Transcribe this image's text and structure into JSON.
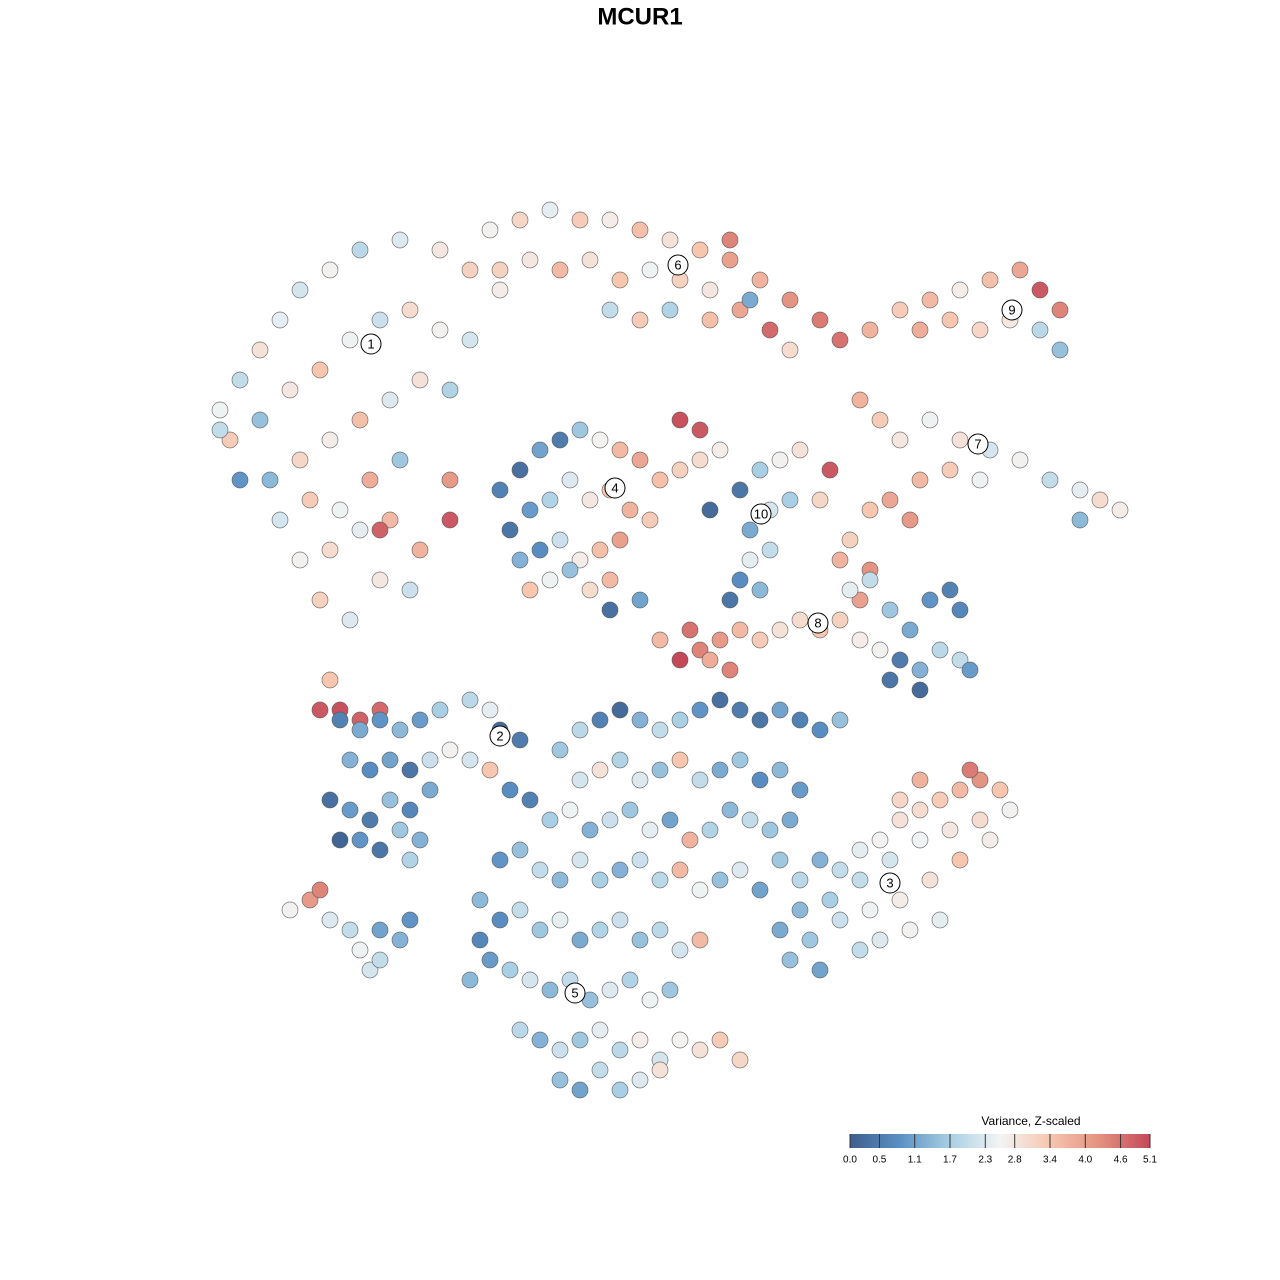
{
  "chart_data": {
    "type": "scatter",
    "title": "MCUR1",
    "xlim": [
      0,
      128
    ],
    "ylim": [
      0,
      128
    ],
    "x": [
      22,
      24,
      26,
      28,
      30,
      33,
      36,
      40,
      44,
      47,
      50,
      23,
      26,
      29,
      32,
      35,
      38,
      41,
      44,
      47,
      27,
      30,
      33,
      36,
      39,
      42,
      45,
      28,
      31,
      34,
      37,
      40,
      30,
      33,
      36,
      39,
      32,
      35,
      38,
      41,
      32,
      34,
      36,
      38,
      33,
      24,
      22,
      45,
      42,
      38,
      45,
      49,
      52,
      55,
      58,
      61,
      64,
      67,
      70,
      73,
      76,
      79,
      82,
      84,
      50,
      53,
      56,
      59,
      62,
      65,
      68,
      71,
      74,
      77,
      79,
      61,
      64,
      67,
      71,
      73,
      75,
      87,
      90,
      93,
      96,
      99,
      102,
      104,
      106,
      92,
      95,
      98,
      101,
      104,
      106,
      86,
      88,
      90,
      93,
      96,
      99,
      102,
      105,
      108,
      110,
      112,
      98,
      95,
      92,
      89,
      87,
      91,
      85,
      84,
      87,
      86,
      108,
      50,
      52,
      54,
      56,
      58,
      60,
      62,
      64,
      66,
      68,
      70,
      72,
      51,
      53,
      55,
      57,
      59,
      61,
      63,
      65,
      52,
      54,
      56,
      58,
      60,
      62,
      53,
      55,
      57,
      59,
      61,
      68,
      70,
      74,
      76,
      78,
      80,
      75,
      77,
      79,
      75,
      77,
      74,
      76,
      71,
      83,
      82,
      68,
      70,
      72,
      74,
      76,
      78,
      80,
      82,
      69,
      71,
      73,
      85,
      87,
      89,
      91,
      93,
      95,
      96,
      90,
      92,
      94,
      96,
      97,
      89,
      92,
      88,
      84,
      86,
      61,
      64,
      73,
      66,
      34,
      36,
      38,
      40,
      42,
      44,
      47,
      49,
      50,
      52,
      35,
      37,
      39,
      41,
      43,
      45,
      47,
      49,
      33,
      35,
      37,
      39,
      41,
      43,
      34,
      36,
      38,
      40,
      42,
      41,
      51,
      53,
      29,
      31,
      32,
      33,
      35,
      36,
      37,
      38,
      40,
      41,
      38,
      56,
      58,
      60,
      62,
      64,
      66,
      68,
      70,
      72,
      74,
      76,
      78,
      80,
      82,
      84,
      58,
      60,
      62,
      64,
      66,
      68,
      70,
      72,
      74,
      76,
      78,
      80,
      55,
      57,
      59,
      61,
      63,
      65,
      67,
      69,
      71,
      73,
      75,
      77,
      79,
      50,
      52,
      54,
      56,
      58,
      60,
      62,
      64,
      66,
      68,
      70,
      72,
      74,
      76,
      48,
      50,
      52,
      54,
      56,
      58,
      60,
      62,
      64,
      66,
      68,
      70,
      49,
      51,
      53,
      55,
      57,
      59,
      61,
      63,
      65,
      67,
      52,
      54,
      56,
      58,
      60,
      62,
      64,
      66,
      68,
      70,
      72,
      74,
      56,
      58,
      60,
      62,
      64,
      66,
      48,
      47,
      78,
      80,
      82,
      84,
      86,
      88,
      90,
      92,
      94,
      96,
      98,
      100,
      101,
      98,
      95,
      92,
      89,
      86,
      83,
      80,
      78,
      81,
      84,
      87,
      90,
      93,
      96,
      99,
      88,
      91,
      94,
      86,
      79,
      82,
      97,
      92,
      90
    ],
    "y": [
      87,
      90,
      93,
      96,
      99,
      101,
      103,
      104,
      103,
      101,
      99,
      84,
      86,
      89,
      91,
      94,
      96,
      97,
      95,
      94,
      80,
      82,
      84,
      86,
      88,
      90,
      89,
      76,
      78,
      77,
      80,
      82,
      72,
      73,
      75,
      76,
      68,
      66,
      70,
      69,
      57,
      57,
      56,
      57,
      60,
      80,
      85,
      80,
      73,
      75,
      76,
      105,
      106,
      107,
      106,
      106,
      105,
      104,
      103,
      102,
      100,
      98,
      96,
      94,
      101,
      102,
      101,
      102,
      100,
      101,
      100,
      99,
      97,
      95,
      93,
      97,
      96,
      97,
      96,
      104,
      98,
      95,
      97,
      98,
      99,
      100,
      101,
      99,
      97,
      95,
      96,
      95,
      96,
      95,
      93,
      88,
      86,
      84,
      86,
      84,
      83,
      82,
      80,
      79,
      78,
      77,
      80,
      81,
      80,
      78,
      77,
      76,
      74,
      72,
      71,
      68,
      76,
      79,
      81,
      83,
      84,
      85,
      84,
      83,
      82,
      80,
      81,
      82,
      83,
      75,
      77,
      78,
      80,
      78,
      79,
      77,
      76,
      72,
      73,
      74,
      72,
      73,
      74,
      69,
      70,
      71,
      69,
      70,
      86,
      85,
      79,
      81,
      82,
      83,
      75,
      77,
      78,
      72,
      73,
      70,
      69,
      77,
      81,
      78,
      62,
      63,
      64,
      65,
      64,
      65,
      66,
      65,
      65,
      62,
      61,
      69,
      70,
      67,
      65,
      68,
      69,
      67,
      62,
      61,
      63,
      62,
      61,
      60,
      59,
      63,
      66,
      64,
      67,
      68,
      68,
      64,
      56,
      55,
      56,
      55,
      56,
      57,
      58,
      57,
      55,
      54,
      52,
      51,
      52,
      51,
      52,
      53,
      52,
      51,
      48,
      47,
      46,
      48,
      47,
      49,
      44,
      44,
      43,
      45,
      44,
      42,
      49,
      48,
      37,
      38,
      39,
      36,
      35,
      33,
      31,
      35,
      34,
      36,
      32,
      53,
      55,
      56,
      57,
      56,
      55,
      56,
      57,
      58,
      57,
      56,
      57,
      56,
      55,
      56,
      50,
      51,
      52,
      50,
      51,
      52,
      50,
      51,
      52,
      50,
      51,
      49,
      46,
      47,
      45,
      46,
      47,
      45,
      46,
      44,
      45,
      47,
      46,
      45,
      46,
      42,
      43,
      41,
      40,
      42,
      40,
      41,
      42,
      40,
      41,
      39,
      40,
      41,
      39,
      38,
      36,
      37,
      35,
      36,
      34,
      35,
      36,
      34,
      35,
      33,
      34,
      32,
      31,
      30,
      29,
      30,
      28,
      29,
      30,
      28,
      29,
      25,
      24,
      23,
      24,
      25,
      23,
      24,
      22,
      24,
      23,
      24,
      22,
      20,
      19,
      21,
      19,
      20,
      21,
      34,
      30,
      42,
      40,
      42,
      41,
      43,
      44,
      46,
      47,
      48,
      49,
      50,
      49,
      47,
      46,
      45,
      44,
      42,
      40,
      38,
      37,
      35,
      34,
      36,
      37,
      38,
      40,
      42,
      44,
      34,
      35,
      36,
      33,
      32,
      31,
      51,
      50,
      48
    ],
    "values": [
      2.5,
      2.0,
      2.9,
      2.4,
      2.2,
      2.6,
      1.9,
      2.3,
      2.8,
      3.2,
      2.7,
      3.3,
      1.5,
      2.8,
      3.4,
      2.5,
      2.1,
      3.0,
      2.6,
      2.2,
      1.4,
      3.1,
      2.7,
      3.5,
      2.3,
      2.9,
      1.8,
      2.2,
      3.3,
      2.5,
      3.8,
      1.6,
      2.6,
      3.0,
      2.4,
      3.6,
      3.2,
      2.3,
      2.8,
      2.1,
      4.9,
      5.0,
      4.8,
      4.7,
      3.4,
      0.9,
      2.0,
      4.1,
      3.7,
      4.8,
      4.9,
      2.6,
      3.1,
      2.4,
      3.3,
      2.7,
      3.5,
      2.9,
      3.4,
      4.0,
      3.7,
      4.2,
      4.5,
      4.6,
      3.2,
      2.8,
      3.6,
      2.9,
      3.4,
      2.5,
      3.2,
      2.8,
      3.9,
      4.7,
      3.0,
      2.0,
      3.3,
      1.8,
      3.5,
      4.4,
      1.2,
      3.7,
      3.3,
      3.6,
      2.7,
      3.5,
      3.9,
      4.9,
      4.4,
      3.8,
      3.4,
      3.1,
      2.8,
      1.9,
      1.5,
      3.7,
      3.3,
      2.8,
      2.5,
      2.9,
      2.2,
      2.6,
      2.0,
      2.4,
      3.0,
      2.7,
      2.5,
      3.3,
      3.6,
      3.9,
      3.4,
      4.1,
      3.2,
      3.7,
      4.2,
      4.0,
      1.4,
      0.6,
      0.3,
      1.1,
      0.5,
      1.6,
      2.6,
      3.6,
      3.9,
      3.5,
      3.2,
      3.0,
      2.7,
      0.4,
      1.0,
      1.8,
      2.3,
      2.8,
      3.4,
      3.7,
      3.3,
      1.3,
      0.8,
      2.1,
      2.7,
      3.5,
      4.0,
      3.4,
      2.5,
      1.5,
      3.0,
      3.6,
      5.0,
      4.9,
      0.4,
      1.7,
      2.6,
      2.9,
      1.2,
      2.2,
      1.7,
      2.4,
      2.0,
      0.8,
      1.4,
      0.2,
      4.9,
      3.1,
      5.1,
      4.4,
      4.1,
      3.6,
      3.3,
      2.9,
      3.0,
      3.4,
      4.6,
      3.8,
      4.4,
      2.4,
      2.0,
      1.6,
      1.2,
      0.9,
      0.6,
      0.7,
      0.5,
      1.3,
      1.9,
      2.0,
      1.0,
      0.4,
      0.2,
      2.6,
      3.2,
      2.7,
      0.3,
      1.1,
      0.4,
      3.6,
      0.6,
      1.2,
      0.9,
      1.4,
      1.0,
      1.7,
      1.9,
      2.4,
      0.2,
      0.5,
      1.3,
      0.8,
      1.1,
      0.4,
      2.1,
      2.6,
      2.2,
      3.4,
      0.3,
      1.0,
      0.5,
      1.5,
      0.7,
      1.2,
      0.1,
      0.9,
      0.4,
      1.6,
      1.3,
      1.8,
      0.8,
      0.6,
      2.6,
      4.1,
      4.4,
      2.3,
      2.0,
      2.5,
      2.2,
      1.1,
      1.3,
      0.9,
      2.0,
      1.6,
      1.9,
      0.6,
      0.2,
      1.3,
      2.0,
      1.7,
      0.9,
      0.3,
      0.5,
      0.4,
      1.1,
      0.6,
      0.8,
      1.5,
      2.2,
      2.9,
      1.8,
      2.3,
      1.5,
      3.4,
      2.0,
      1.2,
      1.6,
      0.8,
      1.4,
      1.0,
      1.7,
      2.5,
      1.3,
      2.1,
      1.6,
      2.4,
      1.1,
      3.7,
      1.8,
      1.4,
      2.0,
      1.6,
      1.2,
      0.9,
      1.5,
      2.0,
      1.4,
      2.2,
      1.7,
      1.3,
      2.1,
      1.9,
      3.6,
      2.5,
      1.5,
      2.3,
      1.1,
      1.4,
      0.8,
      2.0,
      1.6,
      2.4,
      1.2,
      1.8,
      2.1,
      1.5,
      1.9,
      2.2,
      3.6,
      1.0,
      1.7,
      2.2,
      1.4,
      2.0,
      1.5,
      2.3,
      1.8,
      2.5,
      1.6,
      1.9,
      1.3,
      2.1,
      1.6,
      2.4,
      1.9,
      2.7,
      2.2,
      2.6,
      2.9,
      3.3,
      3.1,
      1.5,
      1.1,
      2.0,
      1.7,
      2.3,
      2.9,
      0.7,
      1.4,
      1.6,
      1.9,
      1.3,
      2.0,
      2.4,
      2.6,
      2.9,
      3.0,
      3.3,
      3.6,
      4.2,
      3.4,
      2.6,
      3.0,
      2.8,
      2.5,
      2.2,
      2.0,
      1.7,
      1.4,
      1.2,
      1.6,
      2.1,
      2.5,
      2.7,
      2.9,
      3.4,
      2.7,
      2.3,
      2.6,
      2.4,
      2.0,
      1.5,
      1.1,
      4.5,
      3.7,
      3.1
    ],
    "cluster_labels": [
      {
        "label": "1",
        "x": 37.1,
        "y": 93.6
      },
      {
        "label": "2",
        "x": 50,
        "y": 54.4
      },
      {
        "label": "3",
        "x": 89,
        "y": 39.7
      },
      {
        "label": "4",
        "x": 61.5,
        "y": 79.2
      },
      {
        "label": "5",
        "x": 57.5,
        "y": 28.7
      },
      {
        "label": "6",
        "x": 67.8,
        "y": 101.5
      },
      {
        "label": "7",
        "x": 97.8,
        "y": 83.6
      },
      {
        "label": "8",
        "x": 81.8,
        "y": 65.7
      },
      {
        "label": "9",
        "x": 101.2,
        "y": 97
      },
      {
        "label": "10",
        "x": 76.1,
        "y": 76.6
      }
    ],
    "colorbar": {
      "title": "Variance, Z-scaled",
      "clim": [
        0,
        5.1
      ],
      "colors": [
        "#3d5f8c",
        "#5b90c4",
        "#a8cfe4",
        "#f3f4f4",
        "#f6c6af",
        "#e3917f",
        "#c4485a"
      ],
      "ticks": [
        {
          "value": 0,
          "label": "0.0"
        },
        0.5,
        1.1,
        1.7,
        2.3,
        2.8,
        3.4,
        {
          "value": 4,
          "label": "4.0"
        },
        4.6,
        5.1
      ]
    }
  }
}
